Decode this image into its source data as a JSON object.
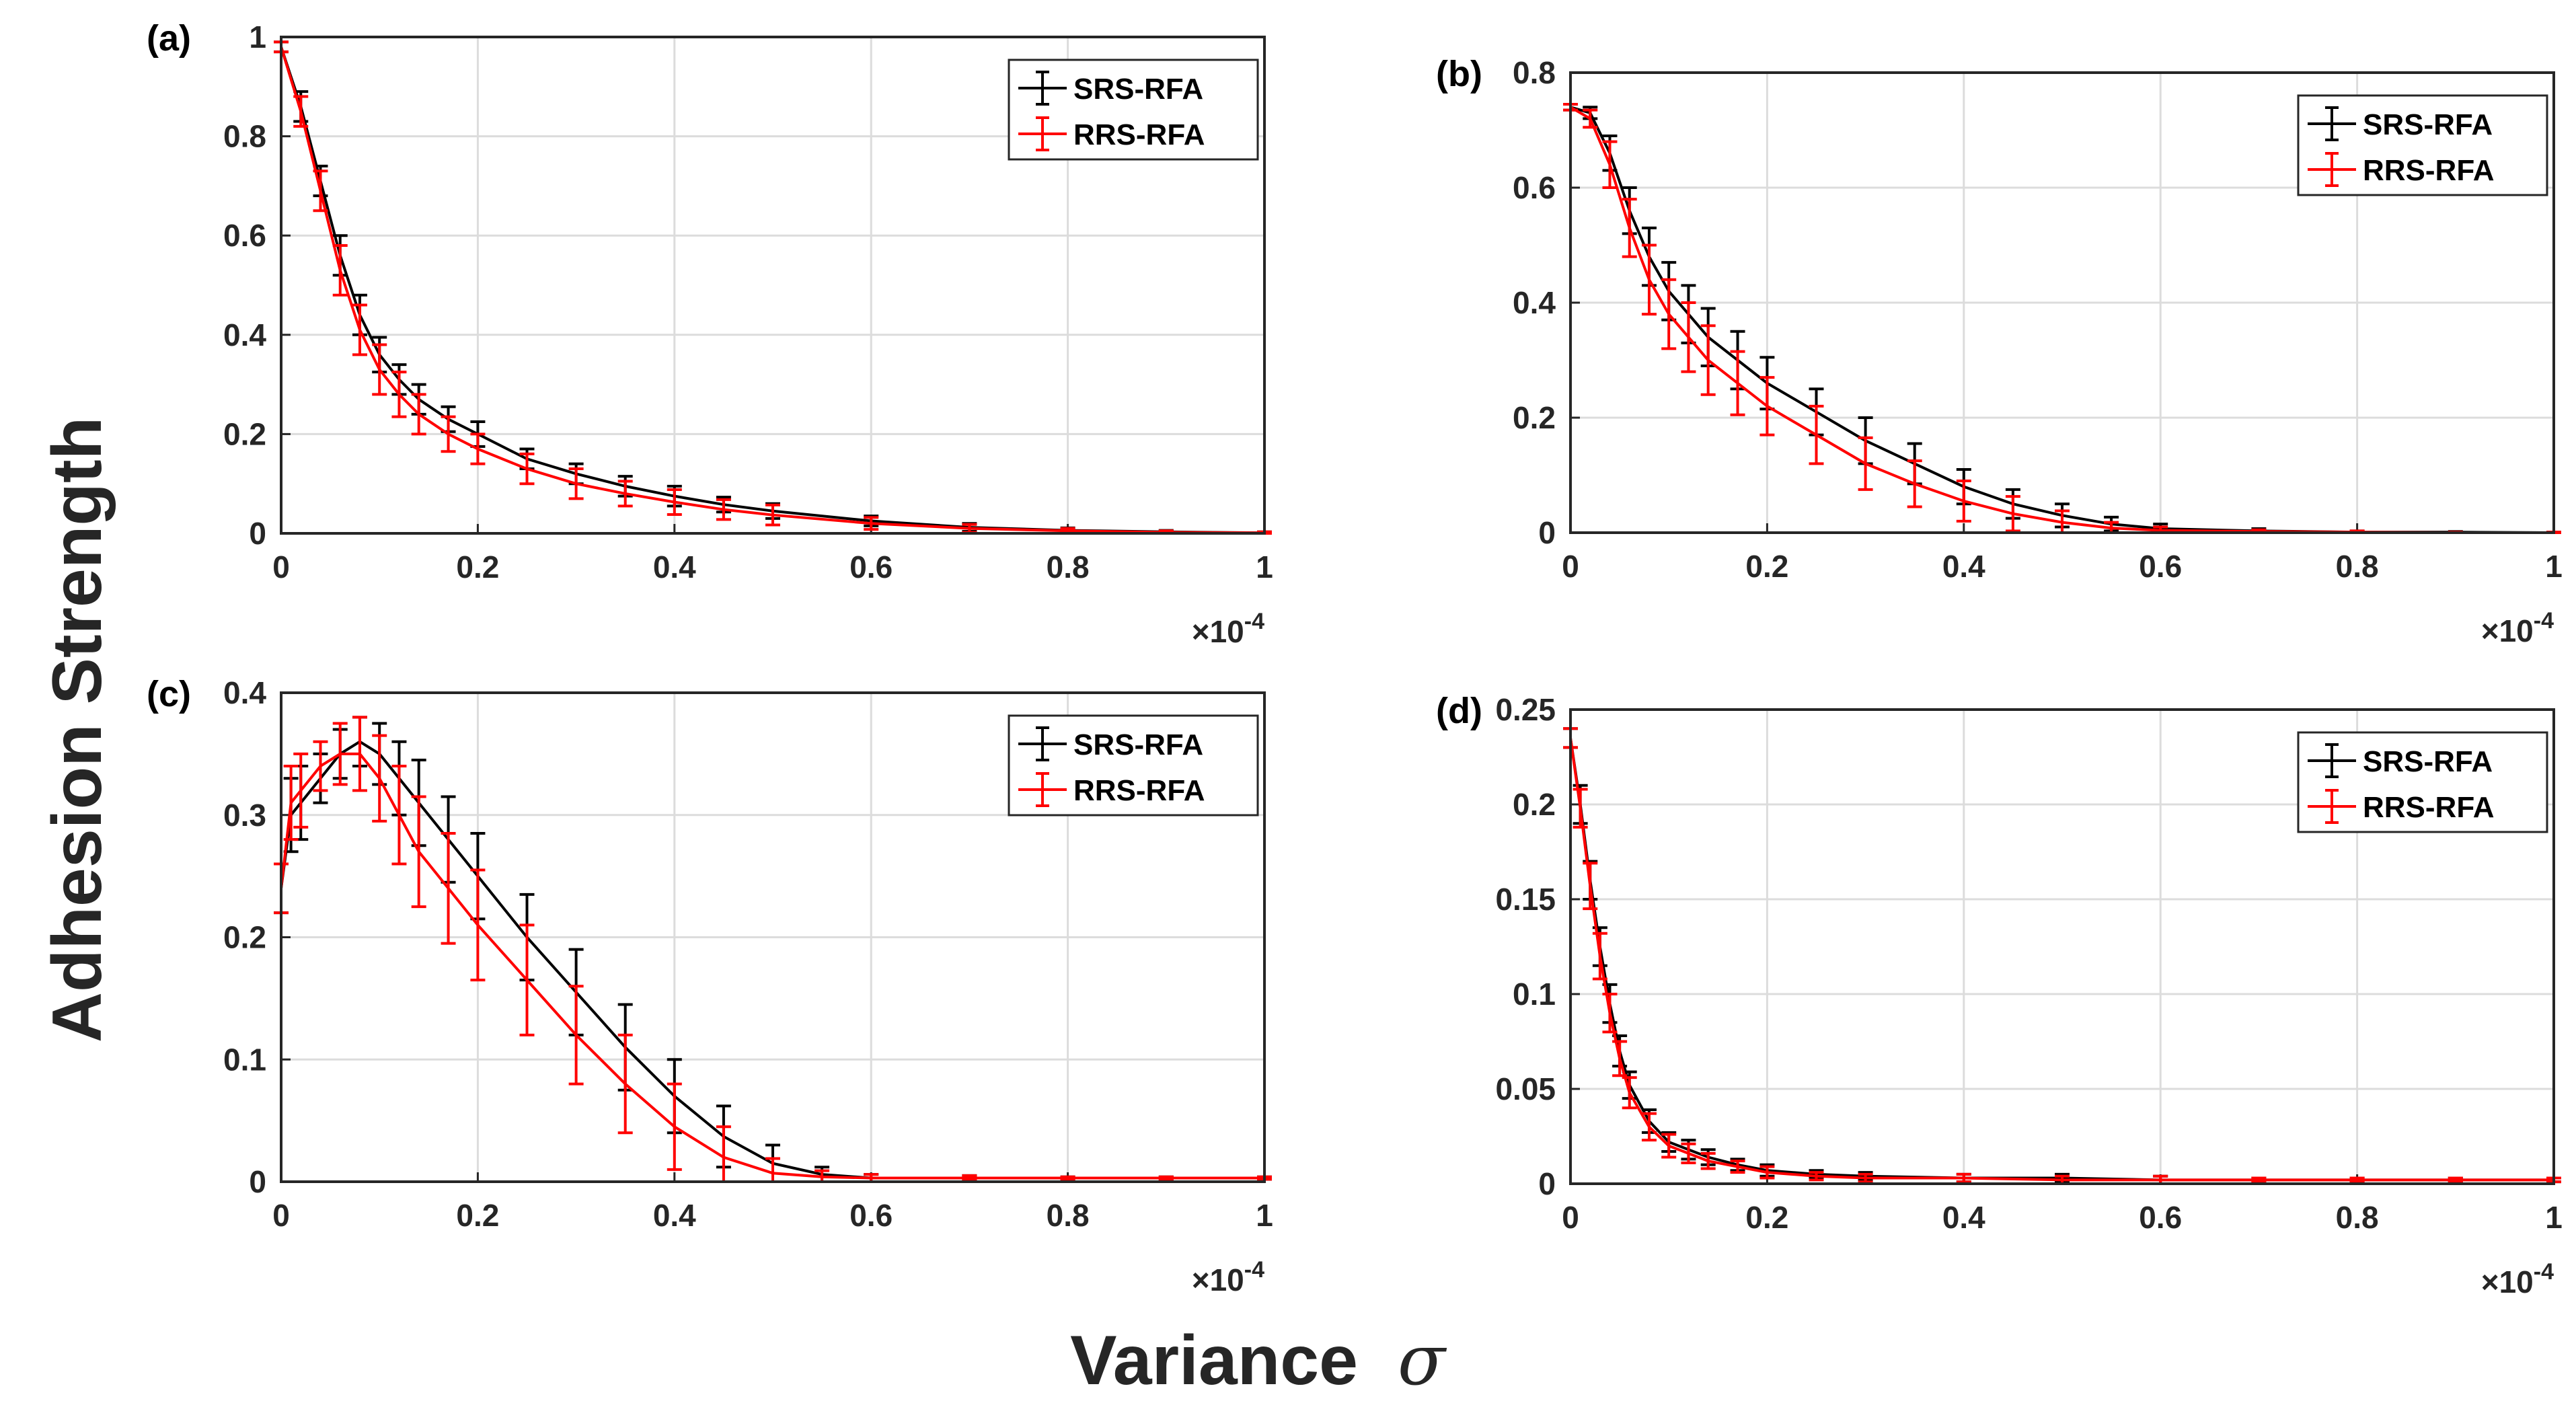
{
  "figure": {
    "ylabel": "Adhesion Strength",
    "xlabel": "Variance",
    "xlabel_symbol": "σ"
  },
  "colors": {
    "SRS-RFA": "#000000",
    "RRS-RFA": "#ff0000",
    "grid": "#dcdcdc",
    "axis": "#262626"
  },
  "chart_data": [
    {
      "panel": "(a)",
      "type": "line",
      "xlim": [
        0,
        1
      ],
      "ylim": [
        0,
        1
      ],
      "x_exponent": "×10",
      "x_exponent_power": "-4",
      "xticks": [
        "0",
        "0.2",
        "0.4",
        "0.6",
        "0.8",
        "1"
      ],
      "yticks": [
        "0",
        "0.2",
        "0.4",
        "0.6",
        "0.8",
        "1"
      ],
      "legend": [
        "SRS-RFA",
        "RRS-RFA"
      ],
      "series": [
        {
          "name": "SRS-RFA",
          "x": [
            0,
            0.02,
            0.04,
            0.06,
            0.08,
            0.1,
            0.12,
            0.14,
            0.17,
            0.2,
            0.25,
            0.3,
            0.35,
            0.4,
            0.45,
            0.5,
            0.6,
            0.7,
            0.8,
            0.9,
            1.0
          ],
          "y": [
            0.98,
            0.86,
            0.71,
            0.56,
            0.44,
            0.36,
            0.31,
            0.27,
            0.23,
            0.2,
            0.15,
            0.12,
            0.095,
            0.075,
            0.058,
            0.045,
            0.025,
            0.012,
            0.006,
            0.003,
            0.001
          ],
          "err": [
            0.01,
            0.03,
            0.03,
            0.04,
            0.04,
            0.035,
            0.03,
            0.03,
            0.025,
            0.025,
            0.02,
            0.02,
            0.02,
            0.02,
            0.015,
            0.015,
            0.01,
            0.008,
            0.005,
            0.003,
            0.002
          ]
        },
        {
          "name": "RRS-RFA",
          "x": [
            0,
            0.02,
            0.04,
            0.06,
            0.08,
            0.1,
            0.12,
            0.14,
            0.17,
            0.2,
            0.25,
            0.3,
            0.35,
            0.4,
            0.45,
            0.5,
            0.6,
            0.7,
            0.8,
            0.9,
            1.0
          ],
          "y": [
            0.98,
            0.85,
            0.69,
            0.53,
            0.41,
            0.33,
            0.28,
            0.24,
            0.2,
            0.17,
            0.13,
            0.1,
            0.08,
            0.063,
            0.048,
            0.037,
            0.02,
            0.01,
            0.005,
            0.002,
            0.001
          ],
          "err": [
            0.01,
            0.03,
            0.04,
            0.05,
            0.05,
            0.05,
            0.045,
            0.04,
            0.035,
            0.03,
            0.03,
            0.03,
            0.025,
            0.025,
            0.02,
            0.02,
            0.012,
            0.008,
            0.005,
            0.003,
            0.002
          ]
        }
      ]
    },
    {
      "panel": "(b)",
      "type": "line",
      "xlim": [
        0,
        1
      ],
      "ylim": [
        0,
        0.8
      ],
      "x_exponent": "×10",
      "x_exponent_power": "-4",
      "xticks": [
        "0",
        "0.2",
        "0.4",
        "0.6",
        "0.8",
        "1"
      ],
      "yticks": [
        "0",
        "0.2",
        "0.4",
        "0.6",
        "0.8"
      ],
      "legend": [
        "SRS-RFA",
        "RRS-RFA"
      ],
      "series": [
        {
          "name": "SRS-RFA",
          "x": [
            0,
            0.02,
            0.04,
            0.06,
            0.08,
            0.1,
            0.12,
            0.14,
            0.17,
            0.2,
            0.25,
            0.3,
            0.35,
            0.4,
            0.45,
            0.5,
            0.55,
            0.6,
            0.7,
            0.8,
            0.9,
            1.0
          ],
          "y": [
            0.74,
            0.73,
            0.66,
            0.56,
            0.48,
            0.42,
            0.38,
            0.34,
            0.3,
            0.26,
            0.21,
            0.16,
            0.12,
            0.08,
            0.05,
            0.03,
            0.015,
            0.007,
            0.003,
            0.001,
            0.001,
            0.0
          ],
          "err": [
            0.005,
            0.01,
            0.03,
            0.04,
            0.05,
            0.05,
            0.05,
            0.05,
            0.05,
            0.045,
            0.04,
            0.04,
            0.035,
            0.03,
            0.025,
            0.02,
            0.012,
            0.008,
            0.004,
            0.002,
            0.001,
            0.001
          ]
        },
        {
          "name": "RRS-RFA",
          "x": [
            0,
            0.02,
            0.04,
            0.06,
            0.08,
            0.1,
            0.12,
            0.14,
            0.17,
            0.2,
            0.25,
            0.3,
            0.35,
            0.4,
            0.45,
            0.5,
            0.55,
            0.6,
            0.7,
            0.8,
            0.9,
            1.0
          ],
          "y": [
            0.74,
            0.72,
            0.64,
            0.53,
            0.44,
            0.38,
            0.34,
            0.3,
            0.26,
            0.22,
            0.17,
            0.12,
            0.085,
            0.055,
            0.033,
            0.018,
            0.008,
            0.004,
            0.002,
            0.001,
            0.0,
            0.0
          ],
          "err": [
            0.005,
            0.015,
            0.04,
            0.05,
            0.06,
            0.06,
            0.06,
            0.06,
            0.055,
            0.05,
            0.05,
            0.045,
            0.04,
            0.035,
            0.03,
            0.02,
            0.01,
            0.006,
            0.003,
            0.002,
            0.001,
            0.001
          ]
        }
      ]
    },
    {
      "panel": "(c)",
      "type": "line",
      "xlim": [
        0,
        1
      ],
      "ylim": [
        0,
        0.4
      ],
      "x_exponent": "×10",
      "x_exponent_power": "-4",
      "xticks": [
        "0",
        "0.2",
        "0.4",
        "0.6",
        "0.8",
        "1"
      ],
      "yticks": [
        "0",
        "0.1",
        "0.2",
        "0.3",
        "0.4"
      ],
      "legend": [
        "SRS-RFA",
        "RRS-RFA"
      ],
      "series": [
        {
          "name": "SRS-RFA",
          "x": [
            0,
            0.01,
            0.02,
            0.04,
            0.06,
            0.08,
            0.1,
            0.12,
            0.14,
            0.17,
            0.2,
            0.25,
            0.3,
            0.35,
            0.4,
            0.45,
            0.5,
            0.55,
            0.6,
            0.7,
            0.8,
            0.9,
            1.0
          ],
          "y": [
            0.24,
            0.3,
            0.31,
            0.33,
            0.35,
            0.36,
            0.35,
            0.33,
            0.31,
            0.28,
            0.25,
            0.2,
            0.155,
            0.11,
            0.07,
            0.037,
            0.015,
            0.006,
            0.003,
            0.003,
            0.003,
            0.003,
            0.003
          ],
          "err": [
            0.02,
            0.03,
            0.03,
            0.02,
            0.02,
            0.02,
            0.025,
            0.03,
            0.035,
            0.035,
            0.035,
            0.035,
            0.035,
            0.035,
            0.03,
            0.025,
            0.015,
            0.006,
            0.003,
            0.002,
            0.001,
            0.001,
            0.001
          ]
        },
        {
          "name": "RRS-RFA",
          "x": [
            0,
            0.01,
            0.02,
            0.04,
            0.06,
            0.08,
            0.1,
            0.12,
            0.14,
            0.17,
            0.2,
            0.25,
            0.3,
            0.35,
            0.4,
            0.45,
            0.5,
            0.55,
            0.6,
            0.7,
            0.8,
            0.9,
            1.0
          ],
          "y": [
            0.24,
            0.31,
            0.32,
            0.34,
            0.35,
            0.35,
            0.33,
            0.3,
            0.27,
            0.24,
            0.21,
            0.165,
            0.12,
            0.08,
            0.045,
            0.02,
            0.007,
            0.004,
            0.003,
            0.003,
            0.003,
            0.003,
            0.003
          ],
          "err": [
            0.02,
            0.03,
            0.03,
            0.02,
            0.025,
            0.03,
            0.035,
            0.04,
            0.045,
            0.045,
            0.045,
            0.045,
            0.04,
            0.04,
            0.035,
            0.025,
            0.012,
            0.005,
            0.003,
            0.002,
            0.001,
            0.001,
            0.001
          ]
        }
      ]
    },
    {
      "panel": "(d)",
      "type": "line",
      "xlim": [
        0,
        1
      ],
      "ylim": [
        0,
        0.25
      ],
      "x_exponent": "×10",
      "x_exponent_power": "-4",
      "xticks": [
        "0",
        "0.2",
        "0.4",
        "0.6",
        "0.8",
        "1"
      ],
      "yticks": [
        "0",
        "0.05",
        "0.1",
        "0.15",
        "0.2",
        "0.25"
      ],
      "legend": [
        "SRS-RFA",
        "RRS-RFA"
      ],
      "series": [
        {
          "name": "SRS-RFA",
          "x": [
            0,
            0.01,
            0.02,
            0.03,
            0.04,
            0.05,
            0.06,
            0.08,
            0.1,
            0.12,
            0.14,
            0.17,
            0.2,
            0.25,
            0.3,
            0.4,
            0.5,
            0.6,
            0.7,
            0.8,
            0.9,
            1.0
          ],
          "y": [
            0.235,
            0.2,
            0.16,
            0.125,
            0.095,
            0.07,
            0.052,
            0.033,
            0.022,
            0.018,
            0.014,
            0.01,
            0.007,
            0.005,
            0.004,
            0.003,
            0.003,
            0.002,
            0.002,
            0.002,
            0.002,
            0.002
          ],
          "err": [
            0.005,
            0.01,
            0.01,
            0.01,
            0.01,
            0.008,
            0.007,
            0.006,
            0.005,
            0.005,
            0.004,
            0.003,
            0.003,
            0.002,
            0.002,
            0.002,
            0.002,
            0.002,
            0.001,
            0.001,
            0.001,
            0.001
          ]
        },
        {
          "name": "RRS-RFA",
          "x": [
            0,
            0.01,
            0.02,
            0.03,
            0.04,
            0.05,
            0.06,
            0.08,
            0.1,
            0.12,
            0.14,
            0.17,
            0.2,
            0.25,
            0.3,
            0.4,
            0.5,
            0.6,
            0.7,
            0.8,
            0.9,
            1.0
          ],
          "y": [
            0.235,
            0.198,
            0.157,
            0.12,
            0.09,
            0.066,
            0.048,
            0.03,
            0.02,
            0.016,
            0.012,
            0.009,
            0.006,
            0.004,
            0.003,
            0.003,
            0.002,
            0.002,
            0.002,
            0.002,
            0.002,
            0.002
          ],
          "err": [
            0.005,
            0.01,
            0.012,
            0.012,
            0.01,
            0.009,
            0.008,
            0.007,
            0.006,
            0.005,
            0.004,
            0.003,
            0.003,
            0.002,
            0.002,
            0.002,
            0.002,
            0.002,
            0.001,
            0.001,
            0.001,
            0.001
          ]
        }
      ]
    }
  ]
}
